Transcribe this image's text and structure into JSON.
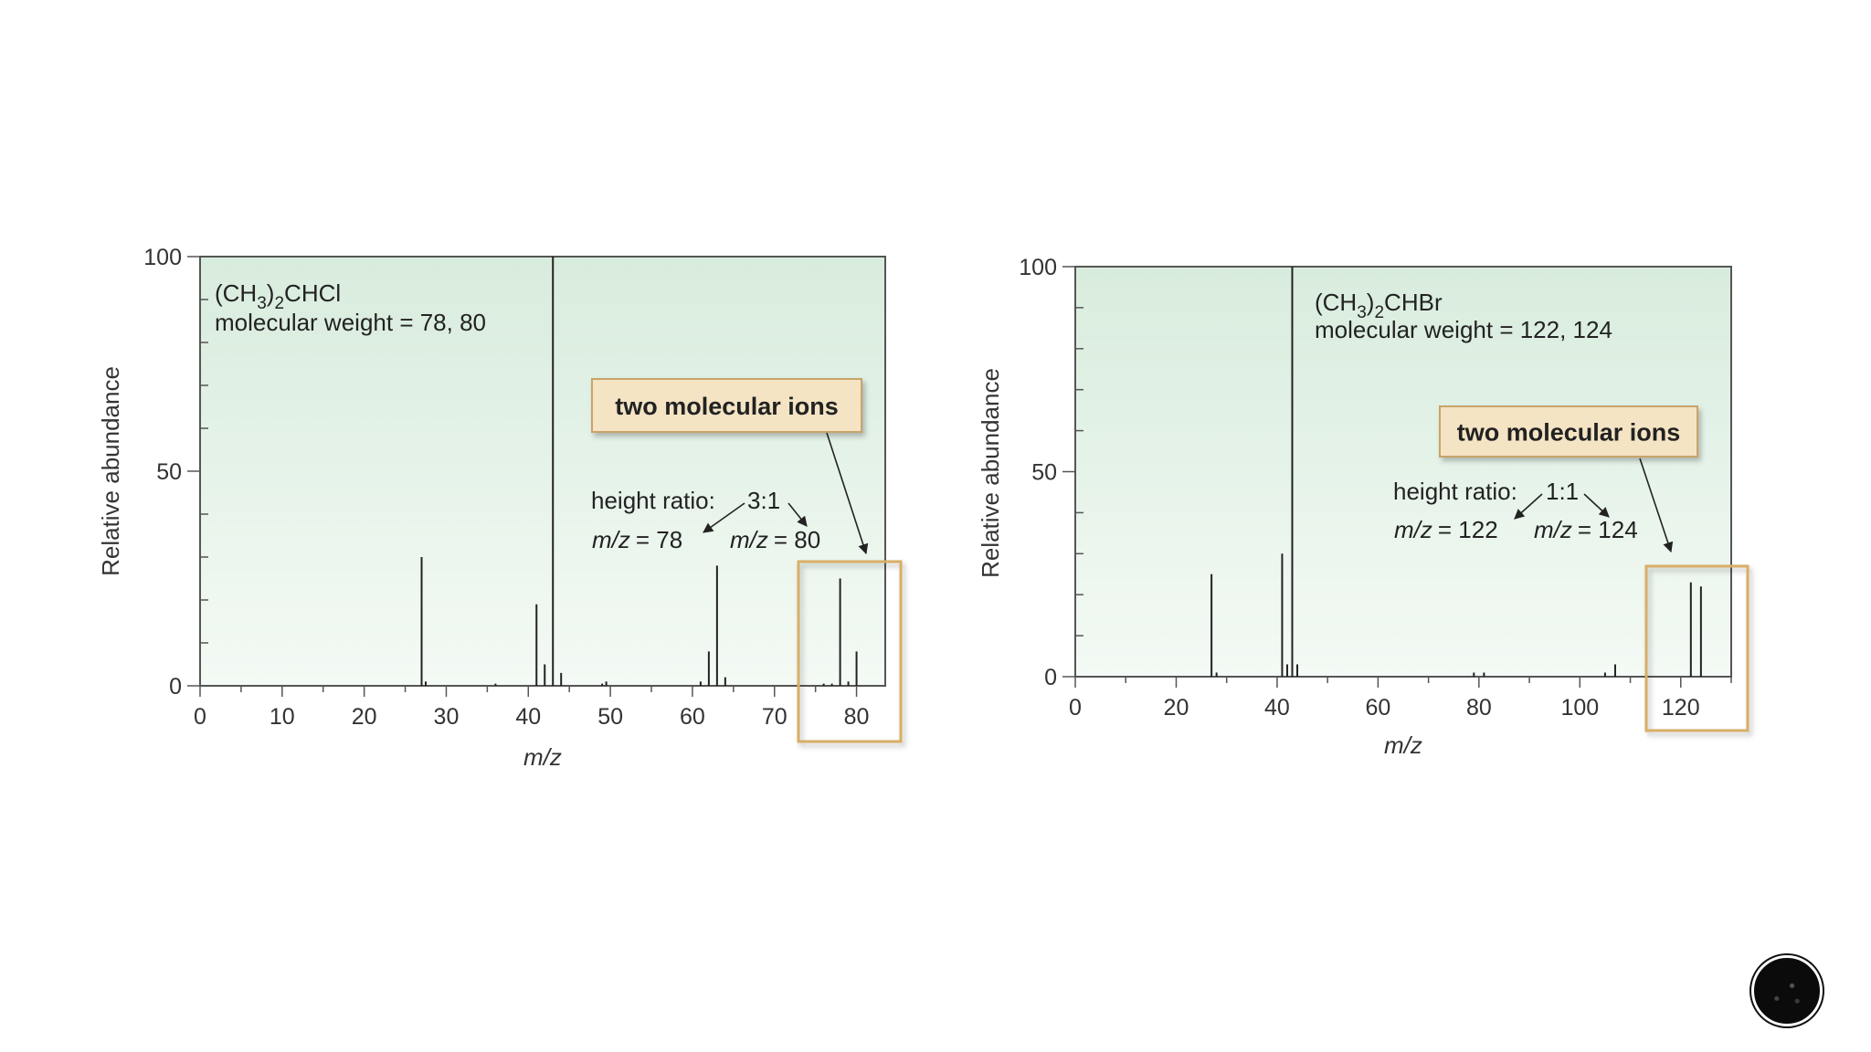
{
  "colors": {
    "plot_top": "#d8ecdd",
    "plot_bottom": "#f4faf5",
    "callout_fill": "#f4e4c4",
    "callout_border": "#c9a36a",
    "highlight_border": "#d9ae66",
    "bar": "#222222"
  },
  "chart_data": [
    {
      "type": "bar",
      "title": "(CH3)2CHCl",
      "formula": {
        "pre": "(CH",
        "sub": "3",
        "mid": ")",
        "sub2": "2",
        "post": "CHCl"
      },
      "subtitle": "molecular weight = 78, 80",
      "xlabel": "m/z",
      "ylabel": "Relative abundance",
      "xlim": [
        0,
        83.5
      ],
      "ylim": [
        0,
        100
      ],
      "x_ticks": [
        "0",
        "10",
        "20",
        "30",
        "40",
        "50",
        "60",
        "70",
        "80"
      ],
      "y_ticks": [
        "0",
        "50",
        "100"
      ],
      "callout": "two molecular ions",
      "ratio_label": "height ratio:",
      "ratio_value": "3:1",
      "ion_label_1": "= 78",
      "ion_label_2": "= 80",
      "mz_prefix": "m/z",
      "peaks": [
        {
          "x": 27,
          "y": 30
        },
        {
          "x": 27.5,
          "y": 1
        },
        {
          "x": 36,
          "y": 0.5
        },
        {
          "x": 41,
          "y": 19
        },
        {
          "x": 42,
          "y": 5
        },
        {
          "x": 43,
          "y": 100
        },
        {
          "x": 44,
          "y": 3
        },
        {
          "x": 49,
          "y": 0.5
        },
        {
          "x": 49.5,
          "y": 1
        },
        {
          "x": 61,
          "y": 1
        },
        {
          "x": 62,
          "y": 8
        },
        {
          "x": 63,
          "y": 28
        },
        {
          "x": 64,
          "y": 2
        },
        {
          "x": 76,
          "y": 0.5
        },
        {
          "x": 77,
          "y": 0.5
        },
        {
          "x": 78,
          "y": 25
        },
        {
          "x": 79,
          "y": 1
        },
        {
          "x": 80,
          "y": 8
        }
      ]
    },
    {
      "type": "bar",
      "title": "(CH3)2CHBr",
      "formula": {
        "pre": "(CH",
        "sub": "3",
        "mid": ")",
        "sub2": "2",
        "post": "CHBr"
      },
      "subtitle": "molecular weight = 122, 124",
      "xlabel": "m/z",
      "ylabel": "Relative abundance",
      "xlim": [
        0,
        130
      ],
      "ylim": [
        0,
        100
      ],
      "x_ticks": [
        "0",
        "20",
        "40",
        "60",
        "80",
        "100",
        "120"
      ],
      "y_ticks": [
        "0",
        "50",
        "100"
      ],
      "callout": "two molecular ions",
      "ratio_label": "height ratio:",
      "ratio_value": "1:1",
      "ion_label_1": "= 122",
      "ion_label_2": "= 124",
      "mz_prefix": "m/z",
      "peaks": [
        {
          "x": 27,
          "y": 25
        },
        {
          "x": 28,
          "y": 1
        },
        {
          "x": 41,
          "y": 30
        },
        {
          "x": 42,
          "y": 3
        },
        {
          "x": 43,
          "y": 100
        },
        {
          "x": 44,
          "y": 3
        },
        {
          "x": 79,
          "y": 1
        },
        {
          "x": 81,
          "y": 1
        },
        {
          "x": 105,
          "y": 1
        },
        {
          "x": 107,
          "y": 3
        },
        {
          "x": 122,
          "y": 23
        },
        {
          "x": 124,
          "y": 22
        }
      ]
    }
  ]
}
